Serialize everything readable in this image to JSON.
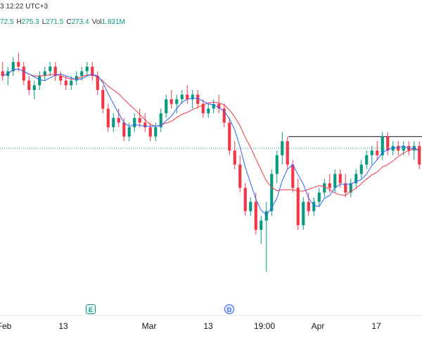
{
  "header": {
    "time_text": "3 12:22 UTC+3",
    "ohlc": [
      {
        "key": "",
        "value": "72.5"
      },
      {
        "key": "H",
        "value": "275.3"
      },
      {
        "key": "L",
        "value": "271.5"
      },
      {
        "key": "C",
        "value": "273.4"
      },
      {
        "key": "Vol",
        "value": "1.831M"
      }
    ]
  },
  "markers": {
    "earnings": "E",
    "dividend": "D"
  },
  "x_axis": {
    "labels": [
      "Feb",
      "13",
      "Mar",
      "13",
      "19:00",
      "Apr",
      "17"
    ]
  },
  "colors": {
    "up": "#089981",
    "down": "#f23645",
    "ma_fast": "#2962ff",
    "ma_slow": "#f23645",
    "resistance": "#131722",
    "price_line": "#089981"
  },
  "chart_data": {
    "type": "candlestick",
    "title": "",
    "xlabel": "",
    "ylabel": "",
    "ylim": [
      235,
      290
    ],
    "horizontal_line": 269,
    "last_price_line": 266.5,
    "candles": [
      [
        283,
        285,
        281,
        282
      ],
      [
        282,
        284,
        280,
        283
      ],
      [
        283,
        286,
        282,
        285
      ],
      [
        285,
        287,
        283,
        284
      ],
      [
        284,
        285,
        280,
        281
      ],
      [
        281,
        282,
        278,
        279
      ],
      [
        279,
        281,
        277,
        280
      ],
      [
        280,
        283,
        279,
        282
      ],
      [
        282,
        284,
        281,
        283
      ],
      [
        283,
        285,
        282,
        284
      ],
      [
        284,
        285,
        281,
        282
      ],
      [
        282,
        283,
        280,
        281
      ],
      [
        281,
        282,
        279,
        280
      ],
      [
        280,
        282,
        279,
        281
      ],
      [
        281,
        283,
        280,
        282
      ],
      [
        282,
        284,
        281,
        283
      ],
      [
        283,
        285,
        282,
        284
      ],
      [
        284,
        285,
        281,
        282
      ],
      [
        282,
        283,
        278,
        279
      ],
      [
        279,
        280,
        274,
        275
      ],
      [
        275,
        276,
        270,
        271
      ],
      [
        271,
        274,
        270,
        273
      ],
      [
        273,
        275,
        271,
        272
      ],
      [
        272,
        273,
        268,
        269
      ],
      [
        269,
        272,
        268,
        271
      ],
      [
        271,
        274,
        270,
        273
      ],
      [
        273,
        275,
        271,
        272
      ],
      [
        272,
        274,
        270,
        271
      ],
      [
        271,
        272,
        268,
        269
      ],
      [
        269,
        272,
        268,
        271
      ],
      [
        271,
        275,
        270,
        274
      ],
      [
        274,
        278,
        273,
        277
      ],
      [
        277,
        279,
        275,
        276
      ],
      [
        276,
        278,
        274,
        277
      ],
      [
        277,
        279,
        276,
        278
      ],
      [
        278,
        280,
        276,
        277
      ],
      [
        277,
        279,
        275,
        278
      ],
      [
        278,
        279,
        275,
        276
      ],
      [
        276,
        277,
        273,
        274
      ],
      [
        274,
        276,
        273,
        275
      ],
      [
        275,
        277,
        274,
        276
      ],
      [
        276,
        278,
        274,
        275
      ],
      [
        275,
        276,
        271,
        272
      ],
      [
        272,
        273,
        265,
        266
      ],
      [
        266,
        268,
        262,
        263
      ],
      [
        263,
        265,
        257,
        258
      ],
      [
        258,
        259,
        252,
        253
      ],
      [
        253,
        256,
        252,
        255
      ],
      [
        255,
        257,
        248,
        249
      ],
      [
        249,
        252,
        246,
        251
      ],
      [
        251,
        255,
        240,
        253
      ],
      [
        253,
        262,
        252,
        261
      ],
      [
        261,
        266,
        259,
        265
      ],
      [
        265,
        270,
        263,
        268
      ],
      [
        268,
        269,
        262,
        263
      ],
      [
        263,
        264,
        257,
        258
      ],
      [
        258,
        260,
        249,
        250
      ],
      [
        250,
        256,
        249,
        255
      ],
      [
        255,
        257,
        252,
        253
      ],
      [
        253,
        256,
        252,
        255
      ],
      [
        255,
        258,
        254,
        257
      ],
      [
        257,
        260,
        256,
        259
      ],
      [
        259,
        261,
        257,
        258
      ],
      [
        258,
        262,
        257,
        261
      ],
      [
        261,
        262,
        258,
        259
      ],
      [
        259,
        261,
        256,
        257
      ],
      [
        257,
        260,
        256,
        259
      ],
      [
        259,
        262,
        258,
        261
      ],
      [
        261,
        264,
        260,
        263
      ],
      [
        263,
        266,
        262,
        265
      ],
      [
        265,
        267,
        263,
        266
      ],
      [
        266,
        268,
        264,
        265
      ],
      [
        265,
        270,
        264,
        269
      ],
      [
        269,
        270,
        265,
        266
      ],
      [
        266,
        268,
        265,
        267
      ],
      [
        267,
        268,
        265,
        266
      ],
      [
        266,
        268,
        265,
        267
      ],
      [
        267,
        268,
        265,
        266
      ],
      [
        266,
        268,
        264,
        267
      ],
      [
        267,
        268,
        262,
        263
      ]
    ]
  }
}
